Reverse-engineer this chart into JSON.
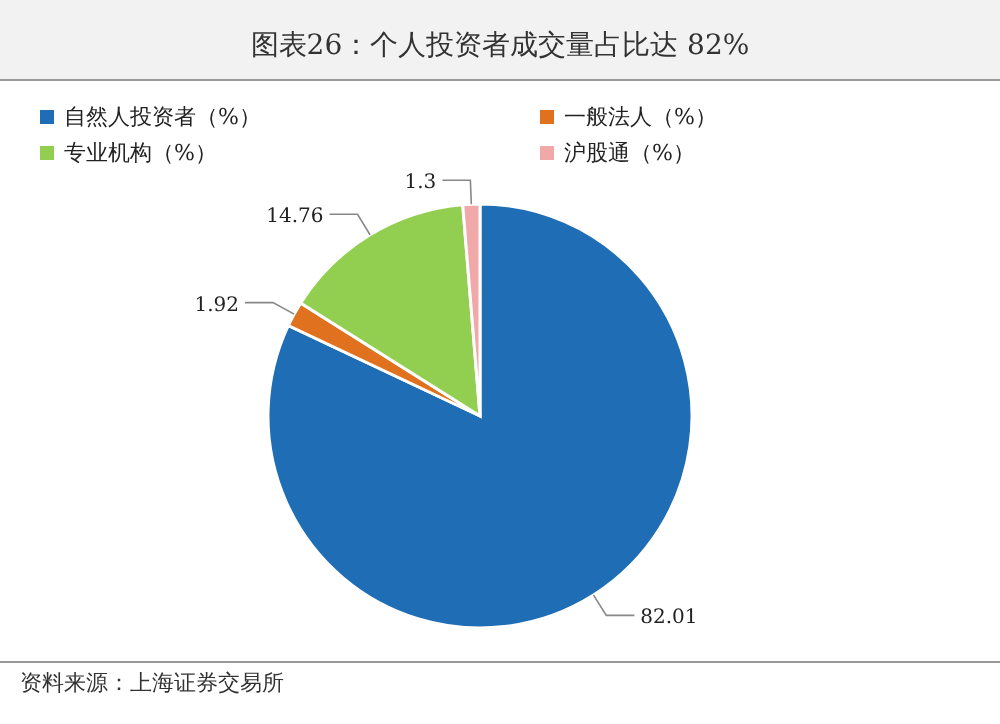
{
  "chart_data": {
    "type": "pie",
    "title": "图表26：个人投资者成交量占比达 82%",
    "categories": [
      "自然人投资者（%）",
      "一般法人（%）",
      "专业机构（%）",
      "沪股通（%）"
    ],
    "values": [
      82.01,
      1.92,
      14.76,
      1.3
    ],
    "colors": [
      "#1f6db4",
      "#e0721f",
      "#92cf50",
      "#f0a8a8"
    ],
    "data_labels": true,
    "legend": "top",
    "annotations": [
      "资料来源：上海证券交易所"
    ]
  }
}
